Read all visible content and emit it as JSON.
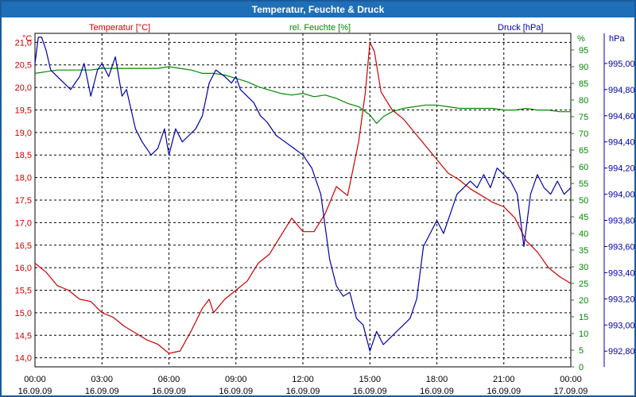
{
  "window": {
    "title": "Temperatur, Feuchte & Druck"
  },
  "colors": {
    "temperature": "#cc0000",
    "humidity": "#008800",
    "pressure": "#0000aa",
    "grid": "#000000"
  },
  "chart_data": {
    "type": "line",
    "title": "Temperatur, Feuchte & Druck",
    "grid": true,
    "x_ticks": [
      {
        "time": "00:00",
        "date": "16.09.09"
      },
      {
        "time": "03:00",
        "date": "16.09.09"
      },
      {
        "time": "06:00",
        "date": "16.09.09"
      },
      {
        "time": "09:00",
        "date": "16.09.09"
      },
      {
        "time": "12:00",
        "date": "16.09.09"
      },
      {
        "time": "15:00",
        "date": "16.09.09"
      },
      {
        "time": "18:00",
        "date": "16.09.09"
      },
      {
        "time": "21:00",
        "date": "16.09.09"
      },
      {
        "time": "00:00",
        "date": "17.09.09"
      }
    ],
    "x_range_hours": [
      0,
      24
    ],
    "axes": {
      "temperature": {
        "label": "Temperatur [°C]",
        "unit": "°C",
        "range": [
          13.8,
          21.2
        ],
        "ticks": [
          "14,0",
          "14,5",
          "15,0",
          "15,5",
          "16,0",
          "16,5",
          "17,0",
          "17,5",
          "18,0",
          "18,5",
          "19,0",
          "19,5",
          "20,0",
          "20,5",
          "21,0"
        ]
      },
      "humidity": {
        "label": "rel. Feuchte [%]",
        "unit": "%",
        "range": [
          0,
          100
        ],
        "ticks": [
          "0",
          "5",
          "10",
          "15",
          "20",
          "25",
          "30",
          "35",
          "40",
          "45",
          "50",
          "55",
          "60",
          "65",
          "70",
          "75",
          "80",
          "85",
          "90",
          "95"
        ]
      },
      "pressure": {
        "label": "Druck [hPa]",
        "unit": "hPa",
        "range": [
          992.68,
          995.23
        ],
        "ticks": [
          "992,80",
          "993,00",
          "993,20",
          "993,40",
          "993,60",
          "993,80",
          "994,00",
          "994,20",
          "994,40",
          "994,60",
          "994,80",
          "995,00"
        ]
      }
    },
    "series": [
      {
        "name": "Temperatur [°C]",
        "axis": "temperature",
        "x": [
          0,
          0.5,
          1,
          1.5,
          2,
          2.5,
          3,
          3.5,
          4,
          4.5,
          5,
          5.5,
          6,
          6.5,
          7,
          7.5,
          7.8,
          8,
          8.5,
          9,
          9.5,
          10,
          10.5,
          11,
          11.5,
          12,
          12.5,
          13,
          13.5,
          14,
          14.5,
          14.8,
          15,
          15.2,
          15.5,
          16,
          16.5,
          17,
          17.5,
          18,
          18.5,
          19,
          19.5,
          20,
          20.5,
          21,
          21.5,
          22,
          22.5,
          23,
          23.5,
          24
        ],
        "y": [
          16.1,
          15.9,
          15.6,
          15.5,
          15.3,
          15.25,
          15.0,
          14.9,
          14.7,
          14.55,
          14.4,
          14.3,
          14.1,
          14.15,
          14.6,
          15.1,
          15.3,
          15.0,
          15.3,
          15.5,
          15.7,
          16.1,
          16.3,
          16.7,
          17.1,
          16.8,
          16.8,
          17.2,
          17.8,
          17.6,
          18.8,
          19.9,
          21.0,
          20.8,
          19.9,
          19.5,
          19.3,
          19.0,
          18.7,
          18.4,
          18.1,
          17.95,
          17.75,
          17.6,
          17.45,
          17.35,
          17.1,
          16.6,
          16.35,
          16.0,
          15.8,
          15.65
        ]
      },
      {
        "name": "rel. Feuchte [%]",
        "axis": "humidity",
        "x": [
          0,
          0.5,
          1,
          1.5,
          2,
          2.5,
          3,
          3.5,
          4,
          4.5,
          5,
          5.5,
          6,
          6.5,
          7,
          7.5,
          8,
          8.5,
          9,
          9.5,
          10,
          10.5,
          11,
          11.5,
          12,
          12.5,
          13,
          13.5,
          14,
          14.5,
          15,
          15.3,
          15.6,
          16,
          16.5,
          17,
          17.5,
          18,
          18.5,
          19,
          19.5,
          20,
          20.5,
          21,
          21.5,
          22,
          22.5,
          23,
          23.5,
          24
        ],
        "y": [
          88,
          88.5,
          89,
          89,
          89,
          89,
          89.5,
          89.5,
          89.5,
          89.5,
          89.5,
          89.5,
          90,
          89.5,
          89,
          88,
          88,
          87.5,
          86.5,
          85.5,
          84,
          83,
          82,
          81.5,
          82,
          81,
          81.5,
          80.5,
          79,
          78,
          75.5,
          73,
          75,
          76.5,
          77.5,
          78,
          78.5,
          78.5,
          78,
          77.5,
          77.5,
          77.5,
          77.5,
          77,
          77,
          77.5,
          77,
          77,
          76.5,
          76.5
        ]
      },
      {
        "name": "Druck [hPa]",
        "axis": "pressure",
        "x": [
          0,
          0.15,
          0.3,
          0.5,
          0.7,
          1,
          1.3,
          1.6,
          1.8,
          2,
          2.2,
          2.5,
          2.8,
          3,
          3.3,
          3.6,
          3.9,
          4.1,
          4.3,
          4.5,
          4.8,
          5.2,
          5.5,
          5.8,
          6,
          6.3,
          6.6,
          6.9,
          7.2,
          7.5,
          7.8,
          8.1,
          8.5,
          8.8,
          9,
          9.2,
          9.5,
          9.8,
          10.1,
          10.4,
          10.8,
          11.2,
          11.6,
          12,
          12.4,
          12.8,
          13.2,
          13.5,
          13.8,
          14.1,
          14.4,
          14.7,
          15,
          15.3,
          15.6,
          15.9,
          16.2,
          16.5,
          16.8,
          17.1,
          17.4,
          17.7,
          18,
          18.3,
          18.6,
          18.9,
          19.2,
          19.5,
          19.8,
          20.1,
          20.4,
          20.7,
          21,
          21.3,
          21.6,
          21.9,
          22.2,
          22.5,
          22.8,
          23.1,
          23.4,
          23.7,
          24
        ],
        "y": [
          995.0,
          995.2,
          995.2,
          995.1,
          994.95,
          994.9,
          994.85,
          994.8,
          994.85,
          994.9,
          995.0,
          994.75,
          994.95,
          995.0,
          994.9,
          995.05,
          994.75,
          994.8,
          994.65,
          994.5,
          994.4,
          994.3,
          994.35,
          994.5,
          994.3,
          994.5,
          994.4,
          994.45,
          994.5,
          994.6,
          994.85,
          994.95,
          994.9,
          994.85,
          994.9,
          994.8,
          994.75,
          994.7,
          994.6,
          994.55,
          994.45,
          994.4,
          994.35,
          994.3,
          994.2,
          994.0,
          993.5,
          993.3,
          993.22,
          993.25,
          993.05,
          993.0,
          992.8,
          992.95,
          992.85,
          992.9,
          992.95,
          993.0,
          993.05,
          993.2,
          993.6,
          993.7,
          993.8,
          993.7,
          993.85,
          994.0,
          994.05,
          994.1,
          994.05,
          994.15,
          994.05,
          994.2,
          994.15,
          994.1,
          994.0,
          993.6,
          994.0,
          994.15,
          994.05,
          994.0,
          994.1,
          994.0,
          994.05
        ]
      }
    ]
  }
}
